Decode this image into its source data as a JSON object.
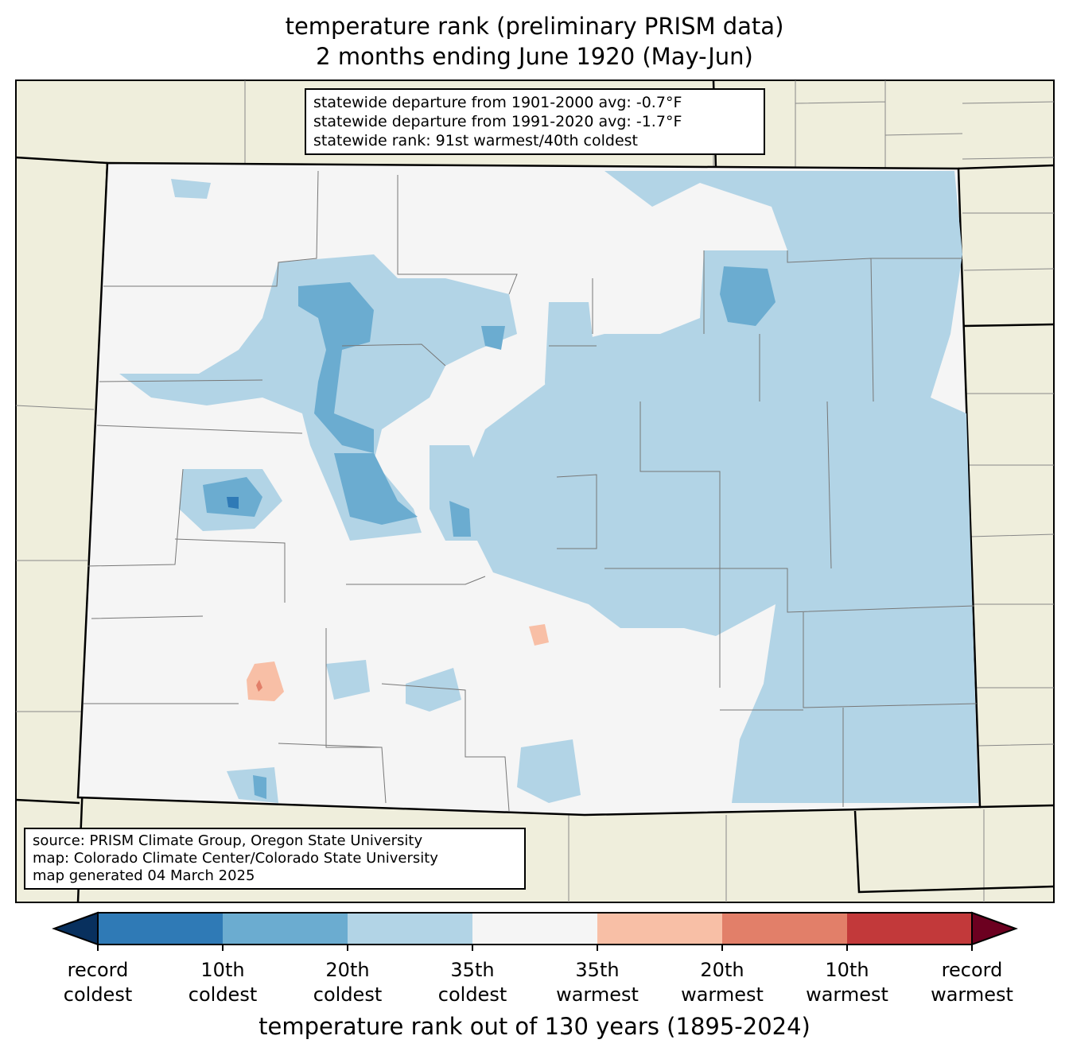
{
  "title": {
    "line1": "temperature rank (preliminary PRISM data)",
    "line2": "2 months ending June 1920 (May-Jun)"
  },
  "stats_box": {
    "line1": "statewide departure from 1901-2000 avg: -0.7°F",
    "line2": "statewide departure from 1991-2020 avg: -1.7°F",
    "line3": "statewide rank: 91st warmest/40th coldest"
  },
  "source_box": {
    "line1": "source: PRISM Climate Group, Oregon State University",
    "line2": "map: Colorado Climate Center/Colorado State University",
    "line3": "map generated 04 March 2025"
  },
  "colorbar": {
    "title": "temperature rank out of 130 years (1895-2024)",
    "ticks": [
      {
        "top": "record",
        "bottom": "coldest"
      },
      {
        "top": "10th",
        "bottom": "coldest"
      },
      {
        "top": "20th",
        "bottom": "coldest"
      },
      {
        "top": "35th",
        "bottom": "coldest"
      },
      {
        "top": "35th",
        "bottom": "warmest"
      },
      {
        "top": "20th",
        "bottom": "warmest"
      },
      {
        "top": "10th",
        "bottom": "warmest"
      },
      {
        "top": "record",
        "bottom": "warmest"
      }
    ],
    "colors": {
      "under": "#08305e",
      "bins": [
        "#2f7ab6",
        "#6bacd0",
        "#b2d4e6",
        "#f5f5f5",
        "#f8bfa6",
        "#e27f69",
        "#c2393a"
      ],
      "over": "#6c0020"
    }
  },
  "map_colors": {
    "background": "#efeedc",
    "state": "#f5f5f5"
  }
}
